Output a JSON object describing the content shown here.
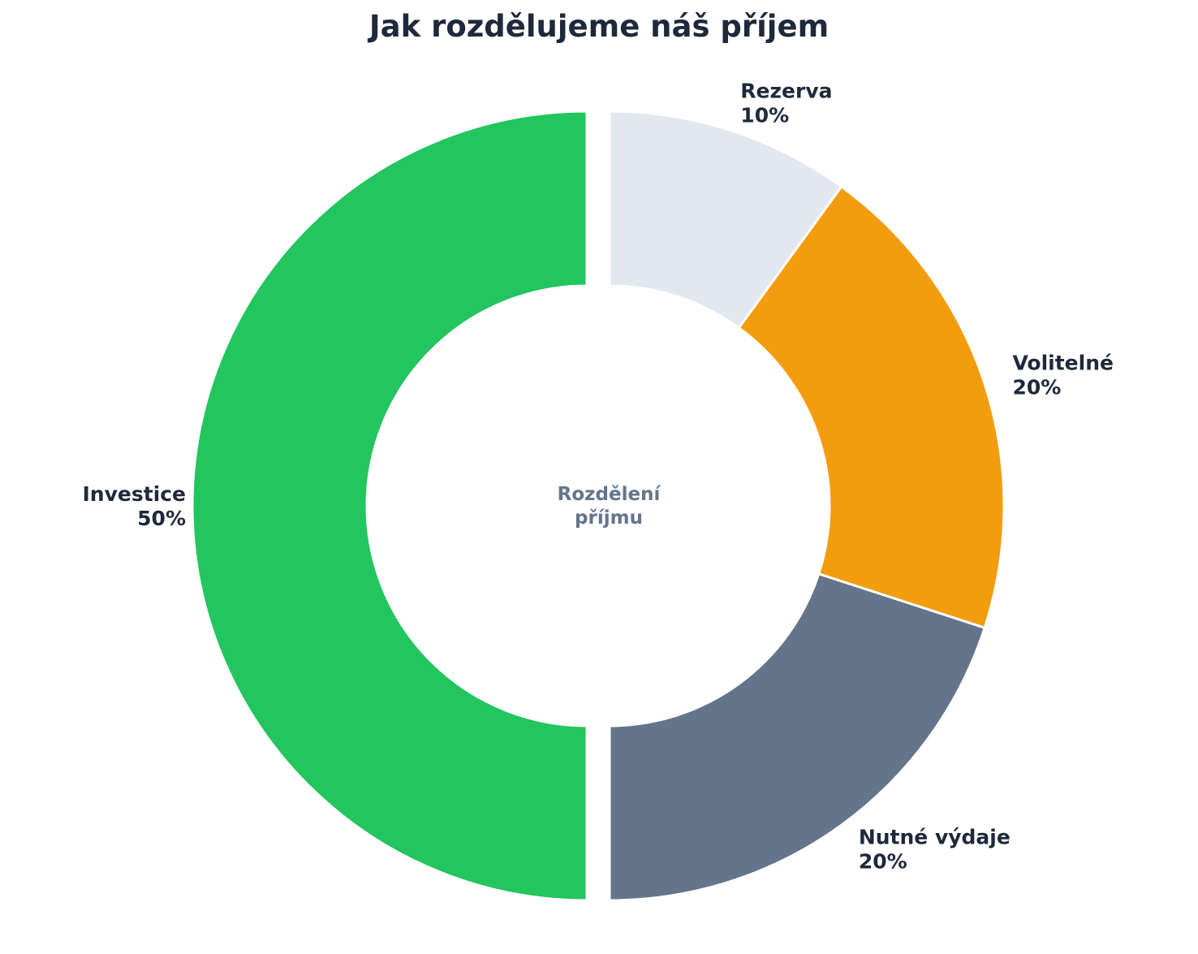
{
  "chart_data": {
    "type": "pie",
    "variant": "donut",
    "title": "Jak rozdělujeme náš příjem",
    "center_label": [
      "Rozdělení",
      "příjmu"
    ],
    "categories": [
      "Investice",
      "Nutné výdaje",
      "Volitelné",
      "Rezerva"
    ],
    "values": [
      50,
      20,
      20,
      10
    ],
    "value_labels": [
      "50%",
      "20%",
      "20%",
      "10%"
    ],
    "colors": [
      "#22c55e",
      "#64748b",
      "#f39c0e",
      "#e2e8f0"
    ],
    "exploded": [
      "Investice"
    ],
    "label_text_color": "#1e293b",
    "center_label_color": "#64748b"
  }
}
